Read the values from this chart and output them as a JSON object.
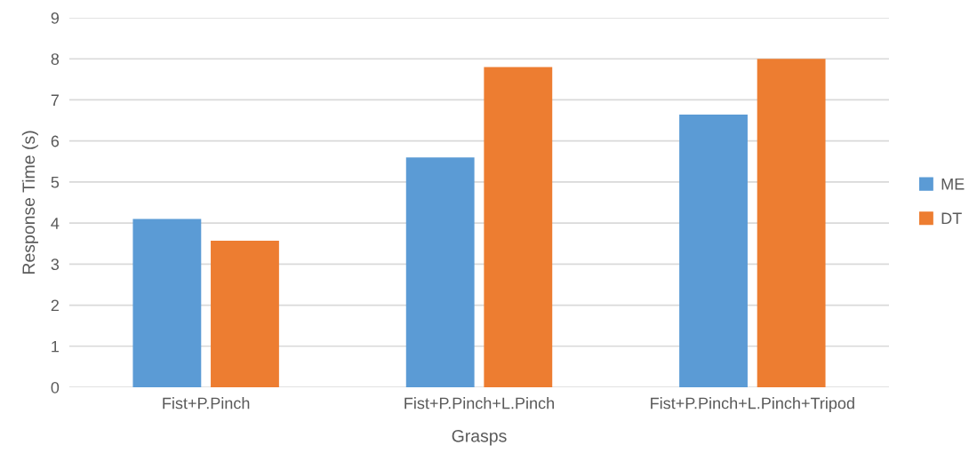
{
  "chart_data": {
    "type": "bar",
    "xlabel": "Grasps",
    "ylabel": "Response Time (s)",
    "categories": [
      "Fist+P.Pinch",
      "Fist+P.Pinch+L.Pinch",
      "Fist+P.Pinch+L.Pinch+Tripod"
    ],
    "series": [
      {
        "name": "ME",
        "color": "#5b9bd5",
        "values": [
          4.1,
          5.6,
          6.64
        ]
      },
      {
        "name": "DT",
        "color": "#ed7d31",
        "values": [
          3.57,
          7.8,
          8.0
        ]
      }
    ],
    "ylim": [
      0,
      9
    ],
    "yticks": [
      0,
      1,
      2,
      3,
      4,
      5,
      6,
      7,
      8,
      9
    ],
    "grid": "y",
    "legend": "right"
  }
}
